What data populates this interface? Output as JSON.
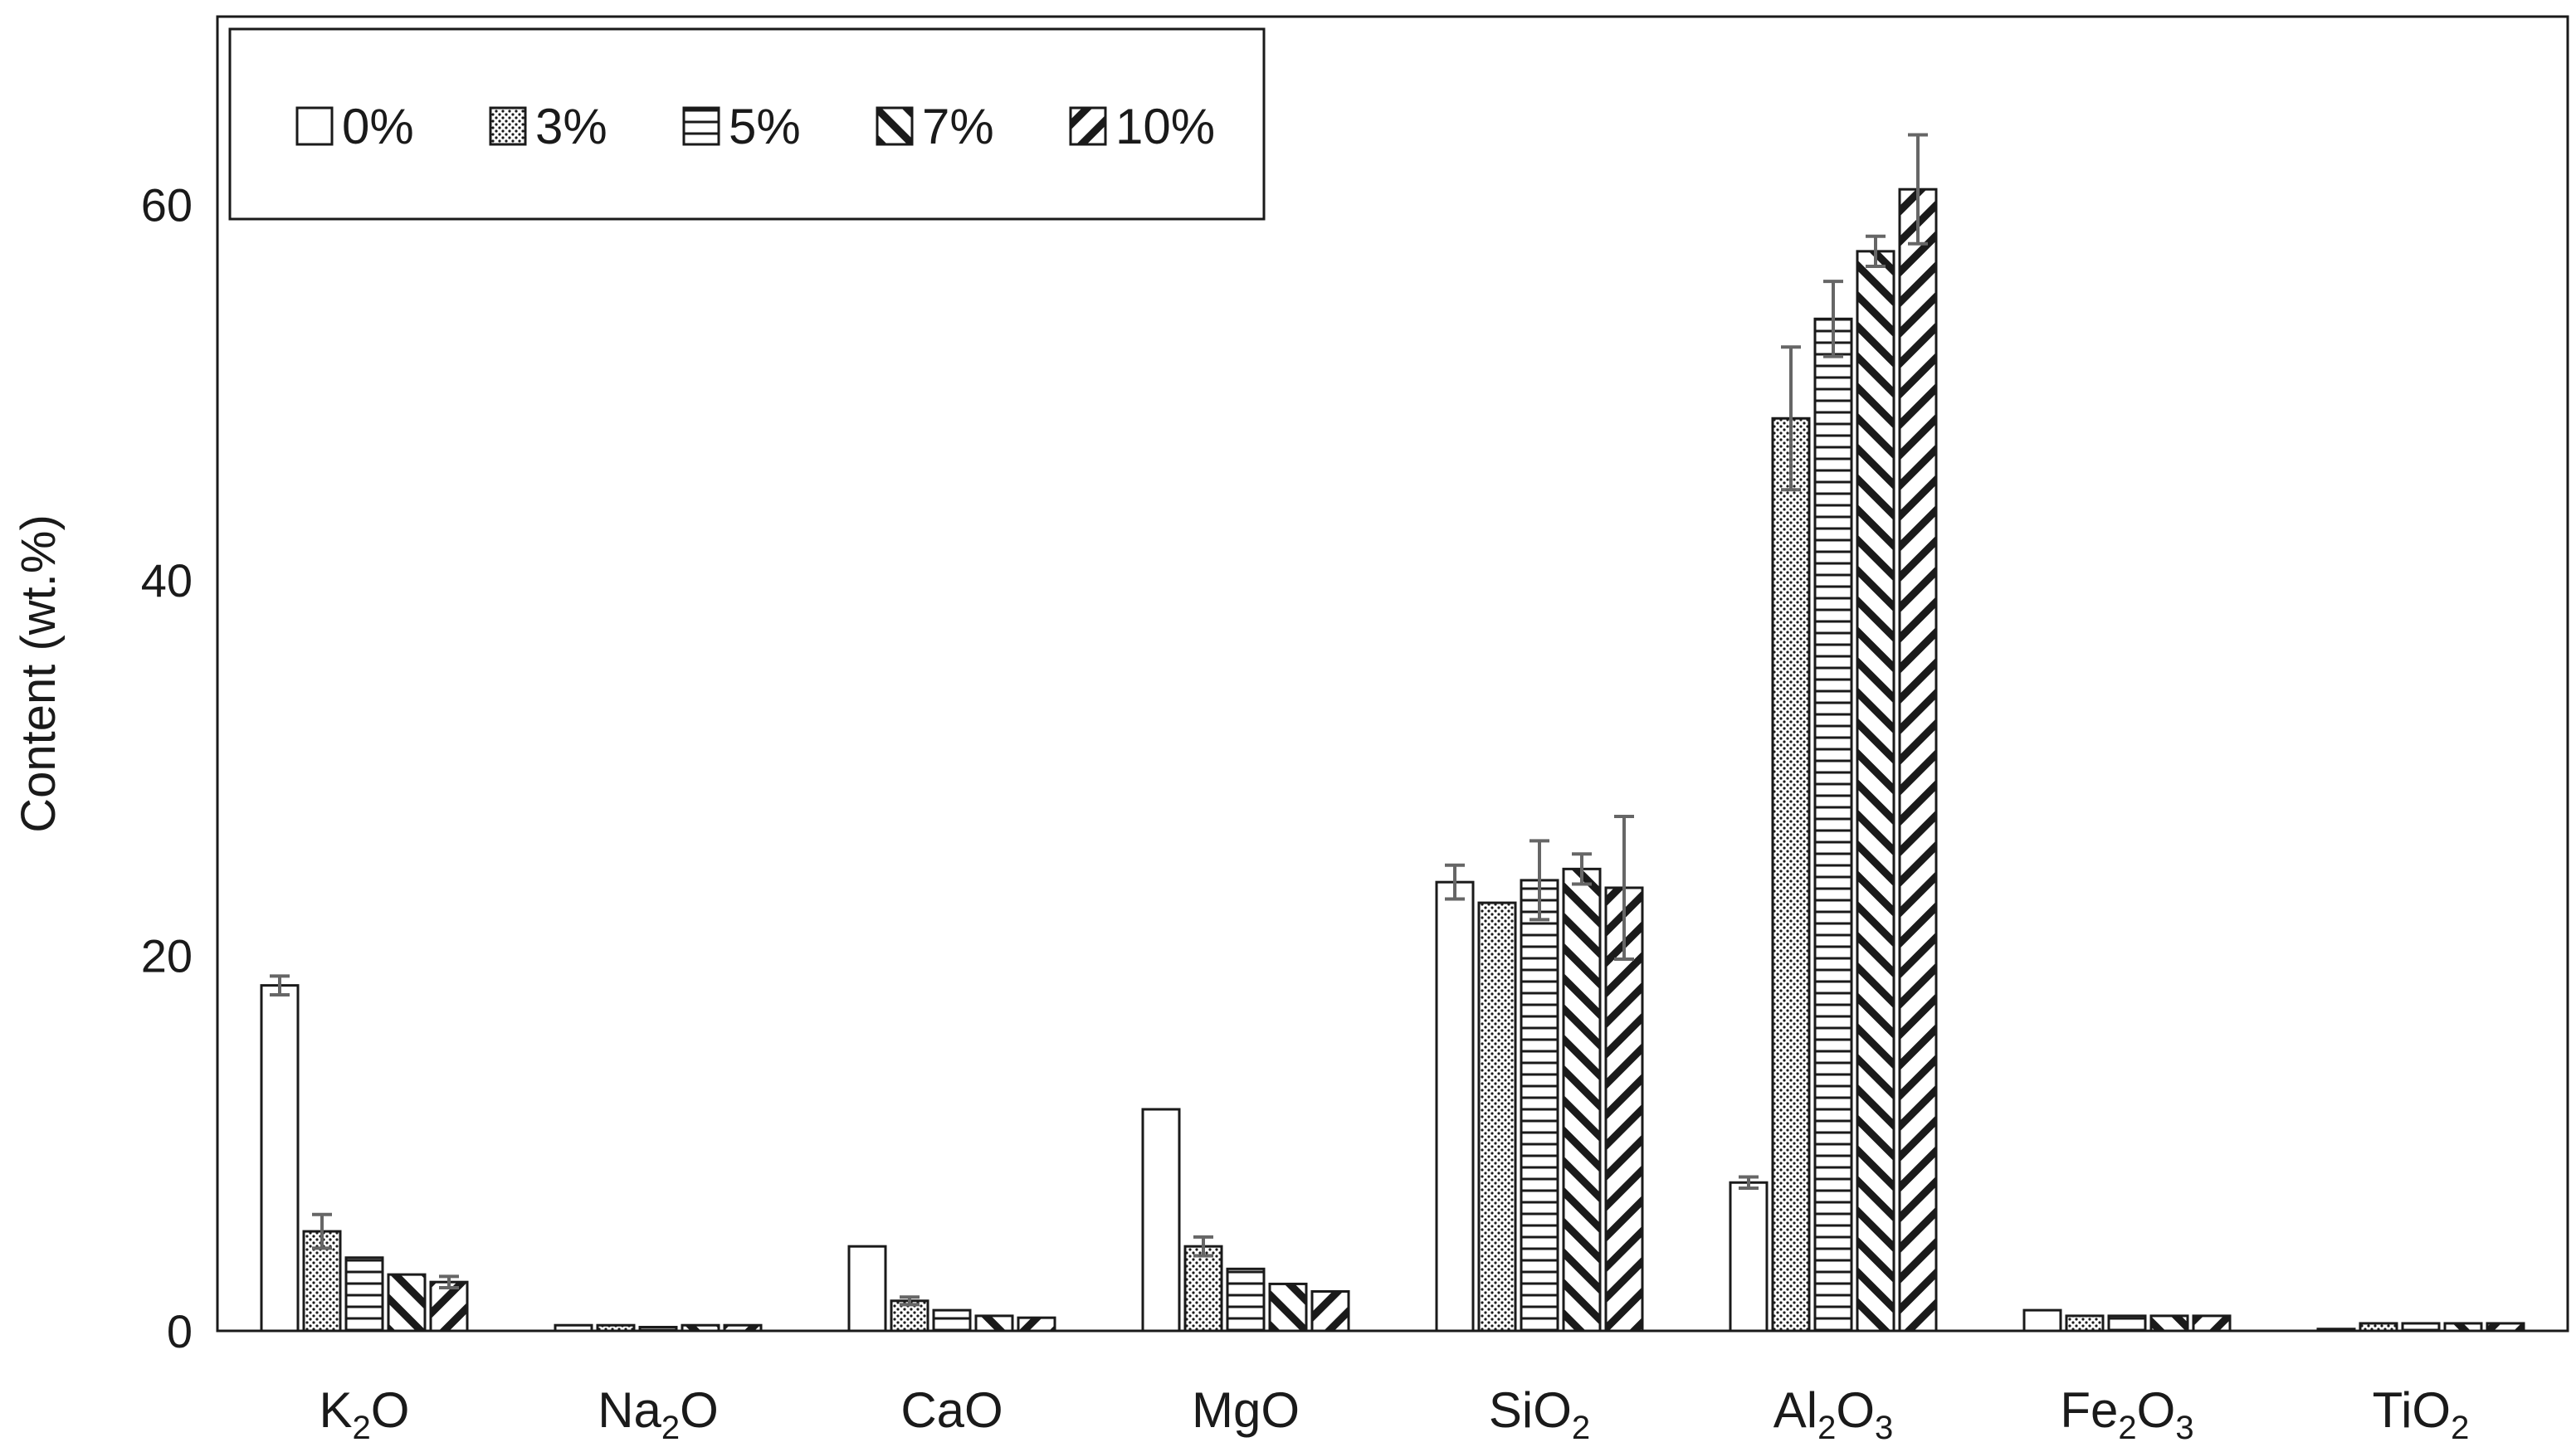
{
  "chart_data": {
    "type": "bar",
    "title": "",
    "xlabel": "",
    "ylabel": "Content (wt.%)",
    "ylim": [
      0,
      70
    ],
    "yticks": [
      0,
      20,
      40,
      60
    ],
    "grid": false,
    "legend_position": "top-left",
    "categories": [
      {
        "base": "K",
        "sub1": "2",
        "mid": "O",
        "sub2": ""
      },
      {
        "base": "Na",
        "sub1": "2",
        "mid": "O",
        "sub2": ""
      },
      {
        "base": "CaO",
        "sub1": "",
        "mid": "",
        "sub2": ""
      },
      {
        "base": "MgO",
        "sub1": "",
        "mid": "",
        "sub2": ""
      },
      {
        "base": "SiO",
        "sub1": "2",
        "mid": "",
        "sub2": ""
      },
      {
        "base": "Al",
        "sub1": "2",
        "mid": "O",
        "sub2": "3"
      },
      {
        "base": "Fe",
        "sub1": "2",
        "mid": "O",
        "sub2": "3"
      },
      {
        "base": "TiO",
        "sub1": "2",
        "mid": "",
        "sub2": ""
      }
    ],
    "series": [
      {
        "name": "0%",
        "pattern": "none",
        "values": [
          18.4,
          0.3,
          4.5,
          11.8,
          23.9,
          7.9,
          1.1,
          0.1
        ],
        "errors": [
          0.5,
          0.0,
          0.0,
          0.0,
          0.9,
          0.3,
          0.0,
          0.0
        ]
      },
      {
        "name": "3%",
        "pattern": "dots",
        "values": [
          5.3,
          0.3,
          1.6,
          4.5,
          22.8,
          48.6,
          0.8,
          0.4
        ],
        "errors": [
          0.9,
          0.0,
          0.2,
          0.5,
          0.0,
          3.8,
          0.0,
          0.0
        ]
      },
      {
        "name": "5%",
        "pattern": "hlines",
        "values": [
          3.9,
          0.2,
          1.1,
          3.3,
          24.0,
          53.9,
          0.8,
          0.4
        ],
        "errors": [
          0.0,
          0.0,
          0.0,
          0.0,
          2.1,
          2.0,
          0.0,
          0.0
        ]
      },
      {
        "name": "7%",
        "pattern": "backslash",
        "values": [
          3.0,
          0.3,
          0.8,
          2.5,
          24.6,
          57.5,
          0.8,
          0.4
        ],
        "errors": [
          0.0,
          0.0,
          0.0,
          0.0,
          0.8,
          0.8,
          0.0,
          0.0
        ]
      },
      {
        "name": "10%",
        "pattern": "slash",
        "values": [
          2.6,
          0.3,
          0.7,
          2.1,
          23.6,
          60.8,
          0.8,
          0.4
        ],
        "errors": [
          0.3,
          0.0,
          0.0,
          0.0,
          3.8,
          2.9,
          0.0,
          0.0
        ]
      }
    ],
    "colors": {
      "bar_stroke": "#1a1a1a",
      "bar_fill": "#ffffff",
      "error_bar": "#666666",
      "axis": "#1a1a1a",
      "text": "#1a1a1a"
    }
  }
}
